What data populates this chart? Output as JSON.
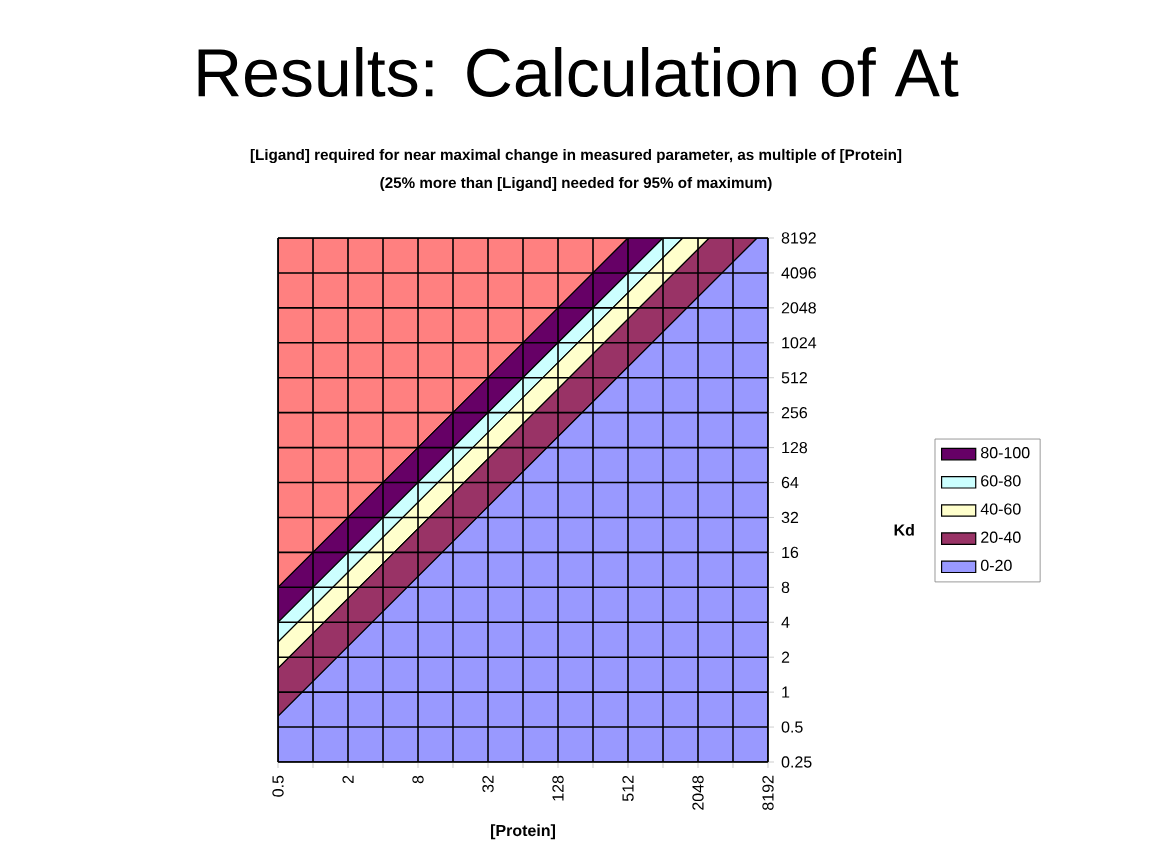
{
  "chart_data": {
    "type": "area",
    "title": "Results: Calculation of At",
    "subtitle": "[Ligand] required for near maximal change in measured parameter, as multiple of [Protein]",
    "annotations": [
      "(25% more than [Ligand] needed for 95% of maximum)"
    ],
    "xlabel": "[Protein]",
    "ylabel": "Kd",
    "log": "xy",
    "grid": true,
    "legend": "right",
    "xlim": [
      0.5,
      8192
    ],
    "ylim": [
      0.25,
      8192
    ],
    "xticks": [
      0.5,
      {
        "value": 1,
        "label": null
      },
      2,
      {
        "value": 4,
        "label": null
      },
      8,
      {
        "value": 16,
        "label": null
      },
      32,
      {
        "value": 64,
        "label": null
      },
      128,
      {
        "value": 256,
        "label": null
      },
      512,
      {
        "value": 1024,
        "label": null
      },
      2048,
      {
        "value": 4096,
        "label": null
      },
      8192
    ],
    "yticks": [
      0.25,
      0.5,
      1,
      2,
      4,
      8,
      16,
      32,
      64,
      128,
      256,
      512,
      1024,
      2048,
      4096,
      8192
    ],
    "series": [
      {
        "color": "#ff8080",
        "x": [
          0.5,
          8192
        ],
        "values": [
          8192,
          8192
        ]
      },
      {
        "name": "80-100",
        "color": "#660066",
        "x": [
          0.5,
          512,
          8192
        ],
        "values": [
          8,
          8192,
          8192
        ]
      },
      {
        "name": "60-80",
        "color": "#ccffff",
        "x": [
          0.5,
          1024,
          8192
        ],
        "values": [
          4,
          8192,
          8192
        ]
      },
      {
        "name": "40-60",
        "color": "#ffffcc",
        "x": [
          0.5,
          1517,
          8192
        ],
        "values": [
          2.7,
          8192,
          8192
        ]
      },
      {
        "name": "20-40",
        "color": "#993366",
        "x": [
          0.5,
          2560,
          8192
        ],
        "values": [
          1.6,
          8192,
          8192
        ]
      },
      {
        "name": "0-20",
        "color": "#9999ff",
        "x": [
          0.5,
          6606,
          8192
        ],
        "values": [
          0.62,
          8192,
          8192
        ]
      }
    ]
  }
}
